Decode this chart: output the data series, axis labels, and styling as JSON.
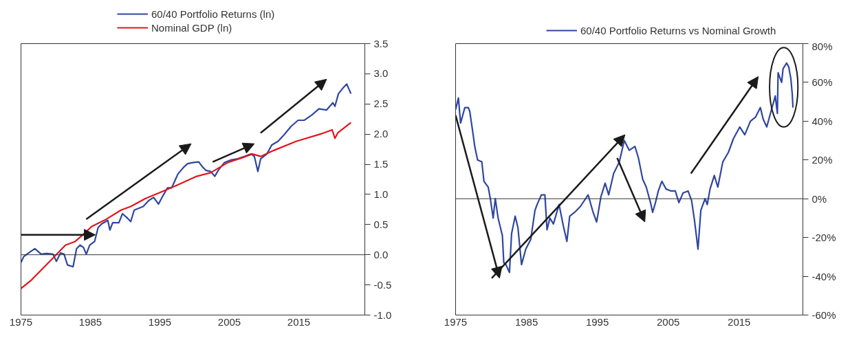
{
  "chart_data": [
    {
      "type": "line",
      "legend": "top",
      "grid": false,
      "xlim": [
        1975,
        2024.5
      ],
      "xticks": [
        1975,
        1985,
        1995,
        2005,
        2015
      ],
      "ylim": [
        -1,
        3.5
      ],
      "yticks": [
        {
          "value": -1,
          "label": "-1.0"
        },
        -0.5,
        {
          "value": 0,
          "label": "0.0"
        },
        0.5,
        {
          "value": 1,
          "label": "1.0"
        },
        1.5,
        {
          "value": 2,
          "label": "2.0"
        },
        2.5,
        {
          "value": 3,
          "label": "3.0"
        },
        3.5
      ],
      "ref_lines": [
        {
          "axis": "y",
          "value": 0,
          "label": null,
          "color": "#333333"
        }
      ],
      "series": [
        {
          "name": "60/40 Portfolio Returns (ln)",
          "color": "#2e46a0",
          "x": [
            1975.0,
            1975.4,
            1976.1,
            1977.0,
            1977.9,
            1978.7,
            1979.6,
            1980.1,
            1980.7,
            1981.2,
            1981.7,
            1982.5,
            1983.0,
            1983.5,
            1984.0,
            1984.4,
            1984.9,
            1985.6,
            1986.1,
            1986.6,
            1987.5,
            1987.8,
            1988.2,
            1989.1,
            1989.6,
            1990.3,
            1990.8,
            1991.3,
            1992.6,
            1993.4,
            1994.1,
            1994.8,
            1995.4,
            1996.1,
            1996.7,
            1997.6,
            1998.5,
            1999.0,
            1999.9,
            2000.6,
            2001.1,
            2001.6,
            2002.3,
            2002.9,
            2003.4,
            2004.3,
            2005.2,
            2006.2,
            2007.2,
            2008.1,
            2008.6,
            2009.1,
            2009.5,
            2010.4,
            2011.1,
            2012.0,
            2012.8,
            2013.9,
            2014.9,
            2015.8,
            2016.9,
            2017.9,
            2019.0,
            2019.9,
            2020.2,
            2020.7,
            2021.4,
            2021.9,
            2022.5
          ],
          "values": [
            -0.13,
            -0.03,
            0.03,
            0.1,
            0.01,
            0.02,
            0.01,
            -0.11,
            0.03,
            0.01,
            -0.17,
            -0.2,
            0.1,
            0.16,
            0.12,
            0.01,
            0.16,
            0.22,
            0.45,
            0.51,
            0.57,
            0.41,
            0.53,
            0.53,
            0.68,
            0.61,
            0.55,
            0.74,
            0.8,
            0.9,
            0.95,
            0.84,
            0.97,
            1.11,
            1.11,
            1.34,
            1.46,
            1.51,
            1.53,
            1.54,
            1.46,
            1.4,
            1.38,
            1.3,
            1.4,
            1.53,
            1.57,
            1.59,
            1.63,
            1.67,
            1.63,
            1.38,
            1.59,
            1.67,
            1.82,
            1.88,
            1.98,
            2.13,
            2.23,
            2.23,
            2.32,
            2.42,
            2.4,
            2.52,
            2.46,
            2.67,
            2.77,
            2.83,
            2.67
          ]
        },
        {
          "name": "Nominal GDP (ln)",
          "color": "#e4141b",
          "x": [
            1975.0,
            1976.5,
            1978.2,
            1980.0,
            1981.4,
            1982.8,
            1983.8,
            1985.2,
            1987.3,
            1989.4,
            1990.8,
            1992.9,
            1995.4,
            1997.8,
            2000.3,
            2002.3,
            2004.8,
            2006.9,
            2008.3,
            2009.5,
            2011.4,
            2014.6,
            2018.1,
            2019.8,
            2020.2,
            2020.6,
            2022.5
          ],
          "values": [
            -0.56,
            -0.42,
            -0.22,
            -0.01,
            0.16,
            0.22,
            0.32,
            0.47,
            0.59,
            0.74,
            0.8,
            0.93,
            1.05,
            1.17,
            1.3,
            1.36,
            1.53,
            1.61,
            1.67,
            1.63,
            1.73,
            1.88,
            2.0,
            2.07,
            1.93,
            2.02,
            2.19
          ]
        }
      ]
    },
    {
      "type": "line",
      "legend": "top",
      "grid": false,
      "xlim": [
        1975,
        2024
      ],
      "xticks": [
        1975,
        1985,
        1995,
        2005,
        2015
      ],
      "ylim": [
        -60,
        80
      ],
      "yticks": [
        {
          "value": -60,
          "label": "-60%"
        },
        {
          "value": -40,
          "label": "-40%"
        },
        {
          "value": -20,
          "label": "-20%"
        },
        {
          "value": 0,
          "label": "0%"
        },
        {
          "value": 20,
          "label": "20%"
        },
        {
          "value": 40,
          "label": "40%"
        },
        {
          "value": 60,
          "label": "60%"
        },
        {
          "value": 80,
          "label": "80%"
        }
      ],
      "ref_lines": [
        {
          "axis": "y",
          "value": 0,
          "label": null,
          "color": "#333333"
        }
      ],
      "series": [
        {
          "name": "60/40 Portfolio Returns vs Nominal Growth",
          "color": "#2e46a0",
          "x": [
            1975.0,
            1975.4,
            1975.7,
            1976.3,
            1976.8,
            1977.0,
            1977.4,
            1977.7,
            1978.1,
            1978.7,
            1979.0,
            1979.6,
            1979.9,
            1980.3,
            1980.6,
            1981.0,
            1981.6,
            1981.8,
            1982.1,
            1982.6,
            1982.9,
            1983.4,
            1983.8,
            1984.3,
            1984.9,
            1985.6,
            1986.2,
            1986.5,
            1987.1,
            1987.6,
            1987.9,
            1988.3,
            1988.8,
            1989.6,
            1990.2,
            1990.7,
            1991.1,
            1991.8,
            1992.6,
            1993.7,
            1994.4,
            1994.9,
            1995.5,
            1996.1,
            1996.6,
            1997.3,
            1998.1,
            1998.8,
            1999.5,
            2000.3,
            2000.8,
            2001.4,
            2001.9,
            2002.5,
            2002.8,
            2003.2,
            2003.6,
            2004.1,
            2004.7,
            2005.4,
            2006.0,
            2006.5,
            2007.1,
            2007.8,
            2008.3,
            2008.7,
            2009.2,
            2009.6,
            2010.2,
            2010.5,
            2010.9,
            2011.5,
            2012.0,
            2012.7,
            2013.5,
            2014.2,
            2015.1,
            2015.8,
            2016.6,
            2017.3,
            2018.0,
            2018.4,
            2018.9,
            2019.5,
            2020.1,
            2020.4,
            2020.5,
            2021.0,
            2021.2,
            2021.7,
            2022.0,
            2022.3,
            2022.5,
            2022.6
          ],
          "values": [
            46,
            52,
            39,
            47,
            47,
            45,
            35,
            27,
            20,
            19,
            9,
            6,
            0,
            -10,
            0,
            -10,
            -19,
            -33,
            -34,
            -38,
            -18,
            -9,
            -15,
            -34,
            -26,
            -21,
            -6,
            -3,
            2,
            2,
            -16,
            -10,
            -13,
            -3,
            -14,
            -22,
            -9,
            -7,
            -4,
            2,
            -7,
            -12,
            1,
            8,
            2,
            13,
            19,
            30,
            25,
            27,
            21,
            10,
            6,
            -2,
            -7,
            -2,
            4,
            9,
            5,
            4,
            4,
            -2,
            3,
            4,
            -1,
            -11,
            -26,
            -6,
            0,
            -3,
            5,
            12,
            6,
            19,
            24,
            31,
            37,
            33,
            40,
            42,
            47,
            41,
            37,
            45,
            53,
            44,
            65,
            60,
            67,
            70,
            68,
            62,
            54,
            47
          ]
        }
      ]
    }
  ]
}
